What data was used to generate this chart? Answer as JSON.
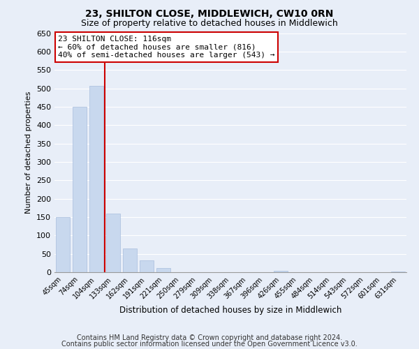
{
  "title": "23, SHILTON CLOSE, MIDDLEWICH, CW10 0RN",
  "subtitle": "Size of property relative to detached houses in Middlewich",
  "xlabel": "Distribution of detached houses by size in Middlewich",
  "ylabel": "Number of detached properties",
  "bar_labels": [
    "45sqm",
    "74sqm",
    "104sqm",
    "133sqm",
    "162sqm",
    "191sqm",
    "221sqm",
    "250sqm",
    "279sqm",
    "309sqm",
    "338sqm",
    "367sqm",
    "396sqm",
    "426sqm",
    "455sqm",
    "484sqm",
    "514sqm",
    "543sqm",
    "572sqm",
    "601sqm",
    "631sqm"
  ],
  "bar_values": [
    150,
    450,
    507,
    160,
    65,
    32,
    12,
    0,
    0,
    0,
    0,
    0,
    0,
    3,
    0,
    0,
    0,
    0,
    0,
    0,
    2
  ],
  "bar_color": "#c8d8ee",
  "bar_edge_color": "#a8bedd",
  "ylim": [
    0,
    650
  ],
  "yticks": [
    0,
    50,
    100,
    150,
    200,
    250,
    300,
    350,
    400,
    450,
    500,
    550,
    600,
    650
  ],
  "vline_x": 2.5,
  "vline_color": "#cc0000",
  "annotation_title": "23 SHILTON CLOSE: 116sqm",
  "annotation_line1": "← 60% of detached houses are smaller (816)",
  "annotation_line2": "40% of semi-detached houses are larger (543) →",
  "annotation_box_color": "#ffffff",
  "annotation_box_edge": "#cc0000",
  "footer_line1": "Contains HM Land Registry data © Crown copyright and database right 2024.",
  "footer_line2": "Contains public sector information licensed under the Open Government Licence v3.0.",
  "bg_color": "#e8eef8",
  "plot_bg_color": "#e8eef8",
  "grid_color": "#ffffff",
  "title_fontsize": 10,
  "subtitle_fontsize": 9,
  "footer_fontsize": 7
}
